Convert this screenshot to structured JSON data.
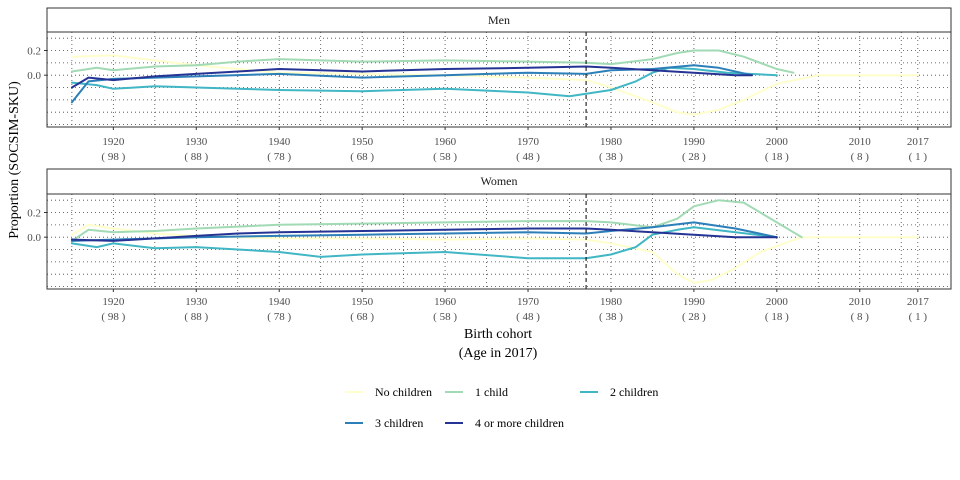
{
  "chart_data": {
    "type": "line",
    "ylabel": "Proportion (SOCSIM-SKU)",
    "xlabel_line1": "Birth cohort",
    "xlabel_line2": "(Age in 2017)",
    "xlim": [
      1912,
      2021
    ],
    "ylim": [
      -0.42,
      0.35
    ],
    "y_ticks": [
      0.2,
      0.0
    ],
    "y_tick_labels": [
      "0.2",
      "0.0"
    ],
    "x_ticks": [
      {
        "year": 1920,
        "label": "1920",
        "age": "( 98 )"
      },
      {
        "year": 1930,
        "label": "1930",
        "age": "( 88 )"
      },
      {
        "year": 1940,
        "label": "1940",
        "age": "( 78 )"
      },
      {
        "year": 1950,
        "label": "1950",
        "age": "( 68 )"
      },
      {
        "year": 1960,
        "label": "1960",
        "age": "( 58 )"
      },
      {
        "year": 1970,
        "label": "1970",
        "age": "( 48 )"
      },
      {
        "year": 1980,
        "label": "1980",
        "age": "( 38 )"
      },
      {
        "year": 1990,
        "label": "1990",
        "age": "( 28 )"
      },
      {
        "year": 2000,
        "label": "2000",
        "age": "( 18 )"
      },
      {
        "year": 2010,
        "label": "2010",
        "age": "( 8 )"
      },
      {
        "year": 2017,
        "label": "2017",
        "age": "( 1 )"
      }
    ],
    "reference_line_x": 1977,
    "grid": true,
    "legend_position": "bottom",
    "series_styles": [
      {
        "name": "No children",
        "color": "#ffffcc"
      },
      {
        "name": "1 child",
        "color": "#a1dab4"
      },
      {
        "name": "2 children",
        "color": "#41b6c4"
      },
      {
        "name": "3 children",
        "color": "#2c7fb8"
      },
      {
        "name": "4 or more children",
        "color": "#253494"
      }
    ],
    "panels": [
      {
        "title": "Men",
        "series": [
          {
            "name": "No children",
            "x": [
              1915,
              1920,
              1925,
              1930,
              1935,
              1940,
              1950,
              1960,
              1970,
              1977,
              1980,
              1985,
              1988,
              1990,
              1993,
              1996,
              2000,
              2005,
              2017
            ],
            "y": [
              0.15,
              0.16,
              0.12,
              0.08,
              0.05,
              0.02,
              0.01,
              0.0,
              -0.02,
              -0.04,
              -0.1,
              -0.22,
              -0.3,
              -0.32,
              -0.28,
              -0.2,
              -0.07,
              0.0,
              0.0
            ]
          },
          {
            "name": "1 child",
            "x": [
              1915,
              1918,
              1920,
              1925,
              1930,
              1935,
              1940,
              1950,
              1960,
              1970,
              1977,
              1980,
              1985,
              1988,
              1990,
              1993,
              1996,
              2000,
              2002
            ],
            "y": [
              0.03,
              0.06,
              0.04,
              0.07,
              0.08,
              0.11,
              0.13,
              0.11,
              0.12,
              0.11,
              0.1,
              0.09,
              0.13,
              0.18,
              0.2,
              0.2,
              0.15,
              0.05,
              0.02
            ]
          },
          {
            "name": "2 children",
            "x": [
              1915,
              1918,
              1920,
              1925,
              1930,
              1935,
              1940,
              1950,
              1960,
              1970,
              1975,
              1977,
              1980,
              1983,
              1985,
              1987,
              1990,
              1994,
              2000
            ],
            "y": [
              -0.06,
              -0.08,
              -0.11,
              -0.09,
              -0.1,
              -0.11,
              -0.12,
              -0.13,
              -0.11,
              -0.14,
              -0.17,
              -0.15,
              -0.12,
              -0.05,
              0.02,
              0.06,
              0.05,
              0.02,
              0.0
            ]
          },
          {
            "name": "3 children",
            "x": [
              1915,
              1917,
              1920,
              1930,
              1940,
              1950,
              1960,
              1970,
              1977,
              1980,
              1985,
              1990,
              1993,
              1997
            ],
            "y": [
              -0.22,
              -0.05,
              -0.03,
              -0.01,
              0.01,
              -0.02,
              0.0,
              0.02,
              0.01,
              0.04,
              0.05,
              0.08,
              0.06,
              0.0
            ]
          },
          {
            "name": "4 or more children",
            "x": [
              1915,
              1917,
              1920,
              1925,
              1930,
              1935,
              1940,
              1945,
              1950,
              1960,
              1970,
              1977,
              1980,
              1985,
              1990,
              1995,
              1997
            ],
            "y": [
              -0.1,
              -0.02,
              -0.04,
              -0.01,
              0.01,
              0.03,
              0.05,
              0.04,
              0.03,
              0.05,
              0.06,
              0.07,
              0.06,
              0.04,
              0.02,
              0.0,
              0.0
            ]
          }
        ]
      },
      {
        "title": "Women",
        "series": [
          {
            "name": "No children",
            "x": [
              1915,
              1917,
              1920,
              1925,
              1930,
              1935,
              1940,
              1950,
              1960,
              1970,
              1977,
              1980,
              1985,
              1988,
              1990,
              1992,
              1995,
              1998,
              2003,
              2017
            ],
            "y": [
              0.02,
              0.1,
              0.07,
              0.03,
              0.01,
              0.0,
              -0.01,
              -0.01,
              -0.02,
              -0.01,
              -0.02,
              -0.05,
              -0.12,
              -0.3,
              -0.37,
              -0.35,
              -0.25,
              -0.12,
              0.0,
              0.0
            ]
          },
          {
            "name": "1 child",
            "x": [
              1915,
              1917,
              1920,
              1925,
              1930,
              1940,
              1950,
              1960,
              1970,
              1977,
              1980,
              1985,
              1988,
              1990,
              1993,
              1996,
              2000,
              2003
            ],
            "y": [
              -0.03,
              0.06,
              0.04,
              0.05,
              0.07,
              0.1,
              0.11,
              0.12,
              0.13,
              0.13,
              0.12,
              0.08,
              0.15,
              0.25,
              0.3,
              0.28,
              0.12,
              0.0
            ]
          },
          {
            "name": "2 children",
            "x": [
              1915,
              1918,
              1920,
              1925,
              1930,
              1935,
              1940,
              1945,
              1950,
              1960,
              1970,
              1977,
              1980,
              1983,
              1985,
              1988,
              1990,
              1995,
              2000
            ],
            "y": [
              -0.05,
              -0.08,
              -0.05,
              -0.09,
              -0.08,
              -0.1,
              -0.12,
              -0.16,
              -0.14,
              -0.12,
              -0.17,
              -0.17,
              -0.14,
              -0.08,
              0.02,
              0.06,
              0.08,
              0.04,
              0.0
            ]
          },
          {
            "name": "3 children",
            "x": [
              1915,
              1920,
              1930,
              1940,
              1950,
              1960,
              1970,
              1977,
              1980,
              1985,
              1990,
              1995,
              2000
            ],
            "y": [
              -0.03,
              -0.02,
              0.0,
              0.01,
              0.02,
              0.03,
              0.04,
              0.03,
              0.05,
              0.08,
              0.12,
              0.07,
              0.0
            ]
          },
          {
            "name": "4 or more children",
            "x": [
              1915,
              1920,
              1925,
              1930,
              1935,
              1940,
              1950,
              1960,
              1970,
              1977,
              1980,
              1985,
              1990,
              1995,
              2000
            ],
            "y": [
              -0.02,
              -0.03,
              -0.01,
              0.01,
              0.03,
              0.04,
              0.05,
              0.06,
              0.07,
              0.07,
              0.06,
              0.04,
              0.02,
              0.0,
              0.0
            ]
          }
        ]
      }
    ]
  }
}
